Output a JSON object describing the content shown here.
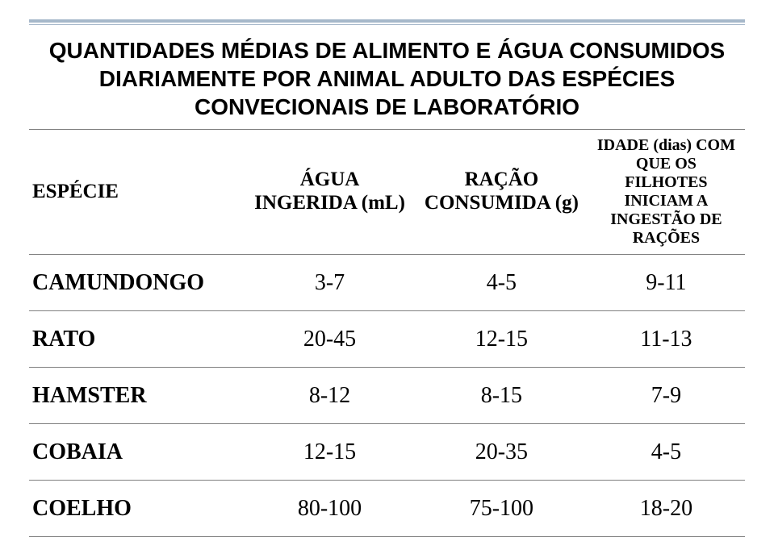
{
  "title_line1": "QUANTIDADES MÉDIAS DE ALIMENTO E ÁGUA CONSUMIDOS",
  "title_line2": "DIARIAMENTE POR ANIMAL ADULTO DAS ESPÉCIES",
  "title_line3": "CONVECIONAIS DE LABORATÓRIO",
  "headers": {
    "col1": "ESPÉCIE",
    "col2a": "ÁGUA",
    "col2b": "INGERIDA (mL)",
    "col3a": "RAÇÃO",
    "col3b": "CONSUMIDA (g)",
    "col4a": "IDADE (dias) COM",
    "col4b": "QUE OS FILHOTES",
    "col4c": "INICIAM A",
    "col4d": "INGESTÃO DE",
    "col4e": "RAÇÕES"
  },
  "rows": {
    "r0": {
      "c0": "CAMUNDONGO",
      "c1": "3-7",
      "c2": "4-5",
      "c3": "9-11"
    },
    "r1": {
      "c0": "RATO",
      "c1": "20-45",
      "c2": "12-15",
      "c3": "11-13"
    },
    "r2": {
      "c0": "HAMSTER",
      "c1": "8-12",
      "c2": "8-15",
      "c3": "7-9"
    },
    "r3": {
      "c0": "COBAIA",
      "c1": "12-15",
      "c2": "20-35",
      "c3": "4-5"
    },
    "r4": {
      "c0": "COELHO",
      "c1": "80-100",
      "c2": "75-100",
      "c3": "18-20"
    }
  }
}
